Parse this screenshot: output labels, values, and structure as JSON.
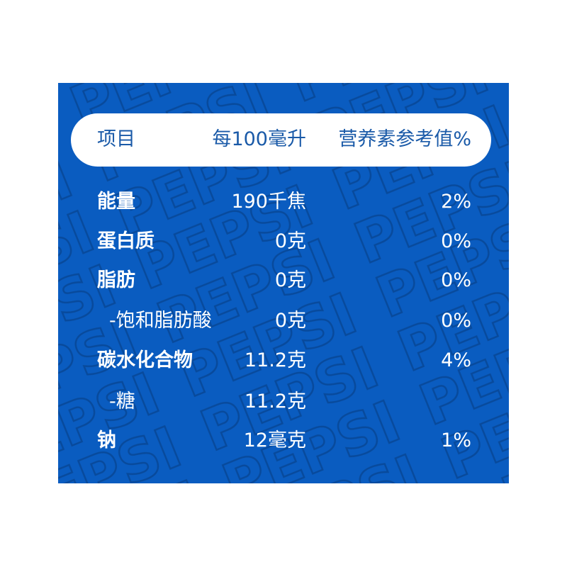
{
  "colors": {
    "background": "#0a5cc0",
    "header_text": "#1a5aa8",
    "text": "#ffffff"
  },
  "watermark": "PEPSI",
  "header": {
    "item": "项目",
    "per100": "每100毫升",
    "nrv": "营养素参考值%"
  },
  "rows": [
    {
      "label": "能量",
      "value": "190千焦",
      "nrv": "2%",
      "sub": false
    },
    {
      "label": "蛋白质",
      "value": "0克",
      "nrv": "0%",
      "sub": false
    },
    {
      "label": "脂肪",
      "value": "0克",
      "nrv": "0%",
      "sub": false
    },
    {
      "label": "-饱和脂肪酸",
      "value": "0克",
      "nrv": "0%",
      "sub": true
    },
    {
      "label": "碳水化合物",
      "value": "11.2克",
      "nrv": "4%",
      "sub": false
    },
    {
      "label": "-糖",
      "value": "11.2克",
      "nrv": "",
      "sub": true
    },
    {
      "label": "钠",
      "value": "12毫克",
      "nrv": "1%",
      "sub": false
    }
  ]
}
